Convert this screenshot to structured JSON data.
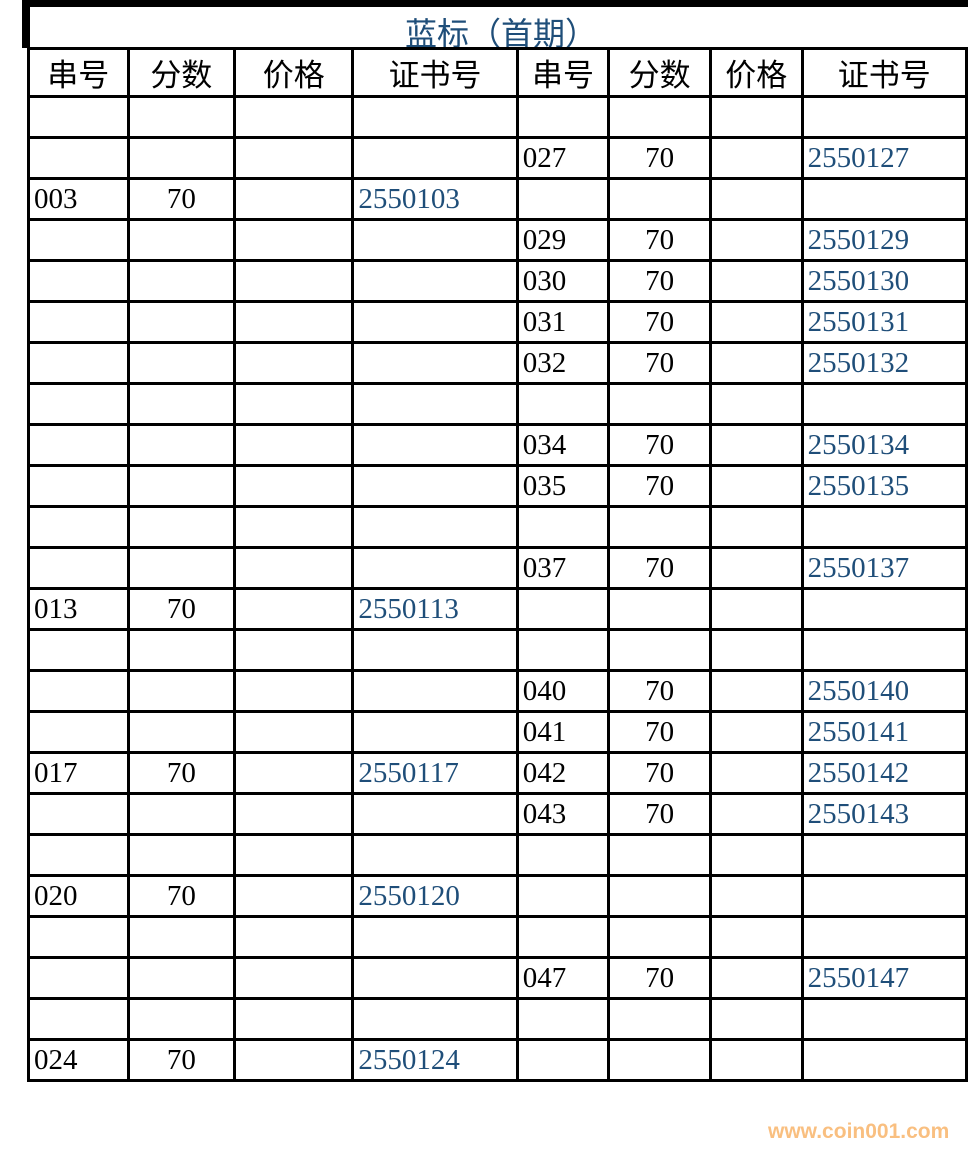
{
  "title": "蓝标（首期）",
  "headers": [
    "串号",
    "分数",
    "价格",
    "证书号",
    "串号",
    "分数",
    "价格",
    "证书号"
  ],
  "rows": [
    {
      "left": {
        "sn": "",
        "score": "",
        "price": "",
        "cert": ""
      },
      "right": {
        "sn": "",
        "score": "",
        "price": "",
        "cert": ""
      }
    },
    {
      "left": {
        "sn": "",
        "score": "",
        "price": "",
        "cert": ""
      },
      "right": {
        "sn": "027",
        "score": "70",
        "price": "",
        "cert": "2550127"
      }
    },
    {
      "left": {
        "sn": "003",
        "score": "70",
        "price": "",
        "cert": "2550103"
      },
      "right": {
        "sn": "",
        "score": "",
        "price": "",
        "cert": ""
      }
    },
    {
      "left": {
        "sn": "",
        "score": "",
        "price": "",
        "cert": ""
      },
      "right": {
        "sn": "029",
        "score": "70",
        "price": "",
        "cert": "2550129"
      }
    },
    {
      "left": {
        "sn": "",
        "score": "",
        "price": "",
        "cert": ""
      },
      "right": {
        "sn": "030",
        "score": "70",
        "price": "",
        "cert": "2550130"
      }
    },
    {
      "left": {
        "sn": "",
        "score": "",
        "price": "",
        "cert": ""
      },
      "right": {
        "sn": "031",
        "score": "70",
        "price": "",
        "cert": "2550131"
      }
    },
    {
      "left": {
        "sn": "",
        "score": "",
        "price": "",
        "cert": ""
      },
      "right": {
        "sn": "032",
        "score": "70",
        "price": "",
        "cert": "2550132"
      }
    },
    {
      "left": {
        "sn": "",
        "score": "",
        "price": "",
        "cert": ""
      },
      "right": {
        "sn": "",
        "score": "",
        "price": "",
        "cert": ""
      }
    },
    {
      "left": {
        "sn": "",
        "score": "",
        "price": "",
        "cert": ""
      },
      "right": {
        "sn": "034",
        "score": "70",
        "price": "",
        "cert": "2550134"
      }
    },
    {
      "left": {
        "sn": "",
        "score": "",
        "price": "",
        "cert": ""
      },
      "right": {
        "sn": "035",
        "score": "70",
        "price": "",
        "cert": "2550135"
      }
    },
    {
      "left": {
        "sn": "",
        "score": "",
        "price": "",
        "cert": ""
      },
      "right": {
        "sn": "",
        "score": "",
        "price": "",
        "cert": ""
      }
    },
    {
      "left": {
        "sn": "",
        "score": "",
        "price": "",
        "cert": ""
      },
      "right": {
        "sn": "037",
        "score": "70",
        "price": "",
        "cert": "2550137"
      }
    },
    {
      "left": {
        "sn": "013",
        "score": "70",
        "price": "",
        "cert": "2550113"
      },
      "right": {
        "sn": "",
        "score": "",
        "price": "",
        "cert": ""
      }
    },
    {
      "left": {
        "sn": "",
        "score": "",
        "price": "",
        "cert": ""
      },
      "right": {
        "sn": "",
        "score": "",
        "price": "",
        "cert": ""
      }
    },
    {
      "left": {
        "sn": "",
        "score": "",
        "price": "",
        "cert": ""
      },
      "right": {
        "sn": "040",
        "score": "70",
        "price": "",
        "cert": "2550140"
      }
    },
    {
      "left": {
        "sn": "",
        "score": "",
        "price": "",
        "cert": ""
      },
      "right": {
        "sn": "041",
        "score": "70",
        "price": "",
        "cert": "2550141"
      }
    },
    {
      "left": {
        "sn": "017",
        "score": "70",
        "price": "",
        "cert": "2550117"
      },
      "right": {
        "sn": "042",
        "score": "70",
        "price": "",
        "cert": "2550142"
      }
    },
    {
      "left": {
        "sn": "",
        "score": "",
        "price": "",
        "cert": ""
      },
      "right": {
        "sn": "043",
        "score": "70",
        "price": "",
        "cert": "2550143"
      }
    },
    {
      "left": {
        "sn": "",
        "score": "",
        "price": "",
        "cert": ""
      },
      "right": {
        "sn": "",
        "score": "",
        "price": "",
        "cert": ""
      }
    },
    {
      "left": {
        "sn": "020",
        "score": "70",
        "price": "",
        "cert": "2550120"
      },
      "right": {
        "sn": "",
        "score": "",
        "price": "",
        "cert": ""
      }
    },
    {
      "left": {
        "sn": "",
        "score": "",
        "price": "",
        "cert": ""
      },
      "right": {
        "sn": "",
        "score": "",
        "price": "",
        "cert": ""
      }
    },
    {
      "left": {
        "sn": "",
        "score": "",
        "price": "",
        "cert": ""
      },
      "right": {
        "sn": "047",
        "score": "70",
        "price": "",
        "cert": "2550147"
      }
    },
    {
      "left": {
        "sn": "",
        "score": "",
        "price": "",
        "cert": ""
      },
      "right": {
        "sn": "",
        "score": "",
        "price": "",
        "cert": ""
      }
    },
    {
      "left": {
        "sn": "024",
        "score": "70",
        "price": "",
        "cert": "2550124"
      },
      "right": {
        "sn": "",
        "score": "",
        "price": "",
        "cert": ""
      }
    }
  ],
  "watermark": "www.coin001.com",
  "colors": {
    "cert_text": "#1f4e79",
    "title_text": "#1f4e79",
    "watermark": "#f8b46a"
  }
}
